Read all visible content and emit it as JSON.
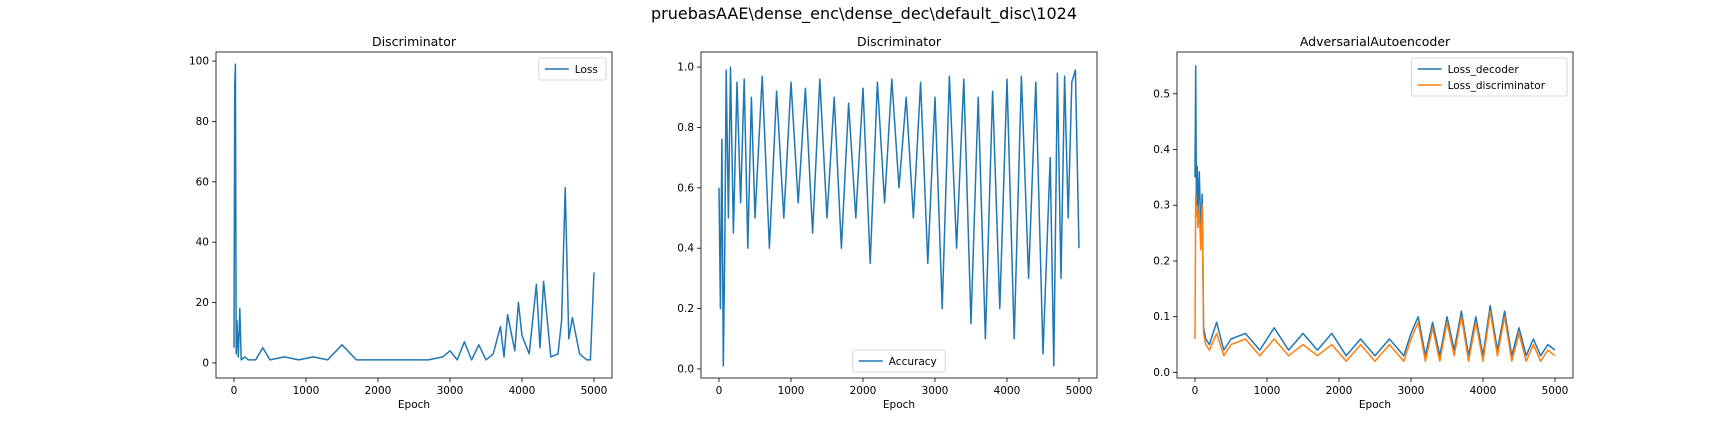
{
  "figure": {
    "suptitle": "pruebasAAE\\dense_enc\\dense_dec\\default_disc\\1024"
  },
  "colors": {
    "blue": "#1f77b4",
    "orange": "#ff7f0e"
  },
  "chart_data": [
    {
      "type": "line",
      "title": "Discriminator",
      "xlabel": "Epoch",
      "ylabel": "",
      "xlim": [
        -250,
        5250
      ],
      "ylim": [
        -5,
        103
      ],
      "xticks": [
        0,
        1000,
        2000,
        3000,
        4000,
        5000
      ],
      "yticks": [
        0,
        20,
        40,
        60,
        80,
        100
      ],
      "legend": "top-right",
      "grid": false,
      "series": [
        {
          "name": "Loss",
          "color": "#1f77b4",
          "x": [
            0,
            10,
            20,
            30,
            40,
            60,
            80,
            100,
            150,
            200,
            300,
            400,
            500,
            700,
            900,
            1100,
            1300,
            1500,
            1700,
            1900,
            2100,
            2300,
            2500,
            2700,
            2900,
            3000,
            3100,
            3200,
            3300,
            3400,
            3500,
            3600,
            3700,
            3750,
            3800,
            3900,
            3950,
            4000,
            4100,
            4200,
            4250,
            4300,
            4400,
            4500,
            4550,
            4600,
            4650,
            4700,
            4800,
            4900,
            4950,
            5000
          ],
          "y": [
            5,
            91,
            99,
            3,
            14,
            2,
            18,
            1,
            2,
            1,
            1,
            5,
            1,
            2,
            1,
            2,
            1,
            6,
            1,
            1,
            1,
            1,
            1,
            1,
            2,
            4,
            1,
            7,
            1,
            6,
            1,
            3,
            12,
            2,
            16,
            4,
            20,
            9,
            3,
            26,
            5,
            27,
            2,
            3,
            14,
            58,
            8,
            15,
            3,
            1,
            1,
            30
          ]
        }
      ]
    },
    {
      "type": "line",
      "title": "Discriminator",
      "xlabel": "Epoch",
      "ylabel": "",
      "xlim": [
        -250,
        5250
      ],
      "ylim": [
        -0.03,
        1.05
      ],
      "xticks": [
        0,
        1000,
        2000,
        3000,
        4000,
        5000
      ],
      "yticks": [
        0.0,
        0.2,
        0.4,
        0.6,
        0.8,
        1.0
      ],
      "legend": "bottom-center",
      "grid": false,
      "series": [
        {
          "name": "Accuracy",
          "color": "#1f77b4",
          "x": [
            0,
            20,
            40,
            60,
            80,
            100,
            130,
            160,
            200,
            250,
            300,
            350,
            400,
            450,
            500,
            600,
            700,
            800,
            900,
            1000,
            1100,
            1200,
            1300,
            1400,
            1500,
            1600,
            1700,
            1800,
            1900,
            2000,
            2100,
            2200,
            2300,
            2400,
            2500,
            2600,
            2700,
            2800,
            2900,
            3000,
            3100,
            3200,
            3300,
            3400,
            3500,
            3600,
            3700,
            3800,
            3900,
            4000,
            4100,
            4200,
            4300,
            4400,
            4500,
            4600,
            4650,
            4700,
            4750,
            4800,
            4850,
            4900,
            4950,
            5000
          ],
          "y": [
            0.6,
            0.2,
            0.76,
            0.01,
            0.4,
            0.99,
            0.5,
            1.0,
            0.45,
            0.95,
            0.55,
            0.96,
            0.4,
            0.9,
            0.5,
            0.97,
            0.4,
            0.92,
            0.5,
            0.95,
            0.55,
            0.93,
            0.45,
            0.96,
            0.5,
            0.9,
            0.4,
            0.88,
            0.5,
            0.93,
            0.35,
            0.95,
            0.55,
            0.96,
            0.6,
            0.9,
            0.5,
            0.95,
            0.35,
            0.9,
            0.2,
            0.97,
            0.4,
            0.96,
            0.15,
            0.9,
            0.1,
            0.92,
            0.2,
            0.96,
            0.1,
            0.97,
            0.3,
            0.95,
            0.05,
            0.7,
            0.01,
            0.98,
            0.3,
            0.97,
            0.5,
            0.95,
            0.99,
            0.4
          ]
        }
      ]
    },
    {
      "type": "line",
      "title": "AdversarialAutoencoder",
      "xlabel": "Epoch",
      "ylabel": "",
      "xlim": [
        -250,
        5250
      ],
      "ylim": [
        -0.01,
        0.575
      ],
      "xticks": [
        0,
        1000,
        2000,
        3000,
        4000,
        5000
      ],
      "yticks": [
        0.0,
        0.1,
        0.2,
        0.3,
        0.4,
        0.5
      ],
      "legend": "top-right",
      "grid": false,
      "series": [
        {
          "name": "Loss_decoder",
          "color": "#1f77b4",
          "x": [
            0,
            10,
            20,
            30,
            40,
            60,
            80,
            100,
            120,
            150,
            200,
            300,
            400,
            500,
            700,
            900,
            1100,
            1300,
            1500,
            1700,
            1900,
            2100,
            2300,
            2500,
            2700,
            2900,
            3000,
            3100,
            3200,
            3300,
            3400,
            3500,
            3600,
            3700,
            3800,
            3900,
            4000,
            4100,
            4200,
            4300,
            4400,
            4500,
            4600,
            4700,
            4800,
            4900,
            5000
          ],
          "y": [
            0.35,
            0.55,
            0.3,
            0.37,
            0.28,
            0.36,
            0.25,
            0.32,
            0.08,
            0.06,
            0.05,
            0.09,
            0.04,
            0.06,
            0.07,
            0.04,
            0.08,
            0.04,
            0.07,
            0.04,
            0.07,
            0.03,
            0.06,
            0.03,
            0.06,
            0.03,
            0.07,
            0.1,
            0.03,
            0.09,
            0.03,
            0.1,
            0.04,
            0.11,
            0.03,
            0.1,
            0.03,
            0.12,
            0.04,
            0.11,
            0.03,
            0.08,
            0.03,
            0.06,
            0.03,
            0.05,
            0.04
          ]
        },
        {
          "name": "Loss_discriminator",
          "color": "#ff7f0e",
          "x": [
            0,
            10,
            20,
            30,
            40,
            60,
            80,
            100,
            120,
            150,
            200,
            300,
            400,
            500,
            700,
            900,
            1100,
            1300,
            1500,
            1700,
            1900,
            2100,
            2300,
            2500,
            2700,
            2900,
            3000,
            3100,
            3200,
            3300,
            3400,
            3500,
            3600,
            3700,
            3800,
            3900,
            4000,
            4100,
            4200,
            4300,
            4400,
            4500,
            4600,
            4700,
            4800,
            4900,
            5000
          ],
          "y": [
            0.06,
            0.32,
            0.28,
            0.3,
            0.26,
            0.29,
            0.22,
            0.3,
            0.07,
            0.05,
            0.04,
            0.07,
            0.03,
            0.05,
            0.06,
            0.03,
            0.06,
            0.03,
            0.05,
            0.03,
            0.05,
            0.02,
            0.05,
            0.02,
            0.05,
            0.02,
            0.06,
            0.09,
            0.02,
            0.08,
            0.02,
            0.09,
            0.03,
            0.1,
            0.02,
            0.09,
            0.02,
            0.11,
            0.03,
            0.1,
            0.02,
            0.07,
            0.02,
            0.05,
            0.02,
            0.04,
            0.03
          ]
        }
      ]
    }
  ]
}
